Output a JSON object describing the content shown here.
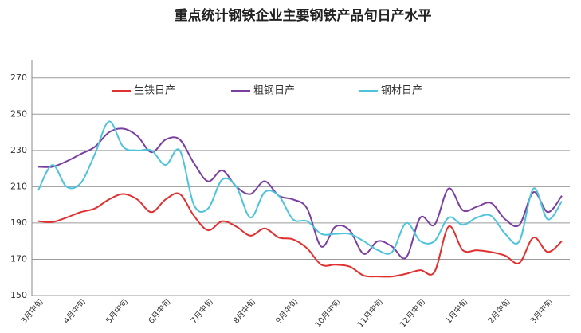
{
  "chart_data": {
    "type": "line",
    "title": "重点统计钢铁企业主要钢铁产品旬日产水平",
    "categories": [
      "3月中旬",
      null,
      null,
      "4月中旬",
      null,
      null,
      "5月中旬",
      null,
      null,
      "6月中旬",
      null,
      null,
      "7月中旬",
      null,
      null,
      "8月中旬",
      null,
      null,
      "9月中旬",
      null,
      null,
      "10月中旬",
      null,
      null,
      "11月中旬",
      null,
      null,
      "12月中旬",
      null,
      null,
      "1月中旬",
      null,
      null,
      "2月中旬",
      null,
      null,
      "3月中旬",
      null
    ],
    "series": [
      {
        "name": "生铁日产",
        "color": "#e03030",
        "values": [
          191,
          190.5,
          193,
          196,
          198,
          203,
          206,
          203,
          196,
          203,
          206,
          194,
          186,
          191,
          188,
          183,
          187,
          182,
          181,
          176,
          167,
          167,
          166,
          161,
          160.5,
          160.5,
          162,
          164,
          163,
          188,
          175,
          175,
          174,
          172,
          168,
          182,
          174,
          180
        ]
      },
      {
        "name": "粗钢日产",
        "color": "#7b3fa0",
        "values": [
          221,
          221,
          224,
          228,
          232,
          240,
          242,
          238,
          229,
          236,
          236,
          223,
          213,
          219,
          210,
          206,
          213,
          205,
          203,
          198,
          177,
          188,
          186,
          173,
          180,
          177,
          171,
          193,
          189,
          209,
          197,
          199,
          201,
          192,
          189,
          207,
          196,
          205
        ]
      },
      {
        "name": "钢材日产",
        "color": "#4fc3dc",
        "values": [
          208,
          222,
          210,
          212,
          228,
          246,
          232,
          230,
          230,
          222,
          230,
          200,
          198,
          214,
          210,
          193,
          207,
          205,
          192,
          191,
          184,
          184,
          184,
          180,
          175,
          174,
          190,
          180,
          180,
          193,
          189,
          193,
          194,
          184,
          180,
          209,
          192,
          202
        ]
      }
    ],
    "ylim": [
      150,
      280
    ],
    "yticks": [
      150,
      170,
      190,
      210,
      230,
      250,
      270
    ],
    "grid": true,
    "legend": "top"
  }
}
